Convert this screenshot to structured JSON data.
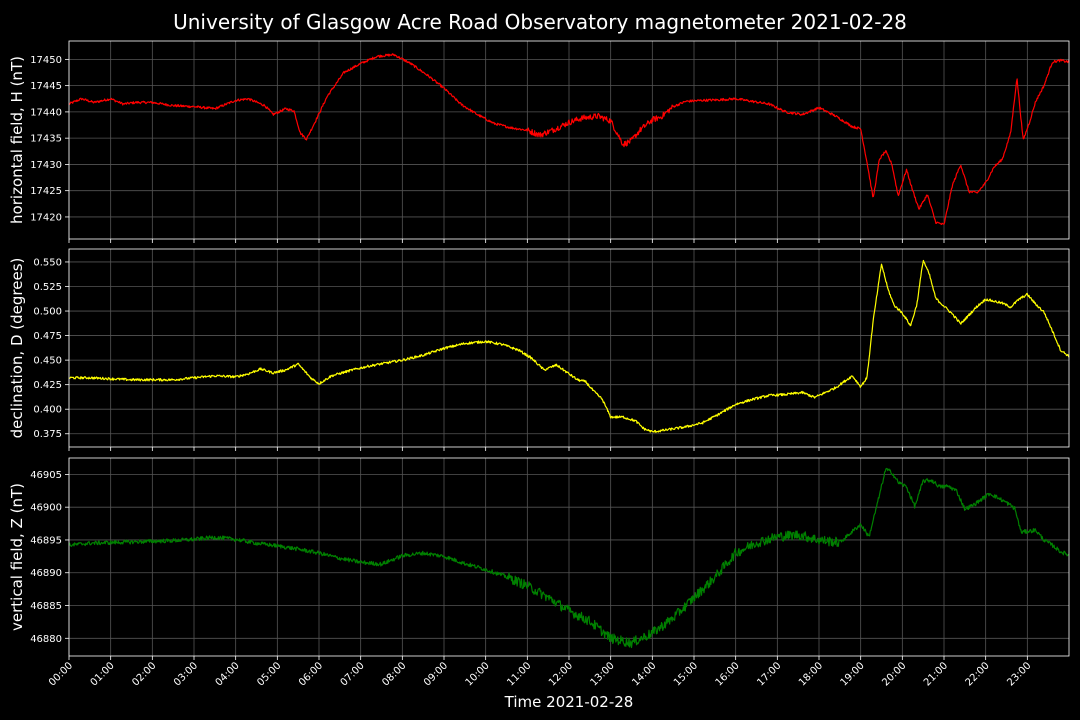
{
  "title": "University of Glasgow Acre Road Observatory magnetometer 2021-02-28",
  "xlabel": "Time 2021-02-28",
  "colors": {
    "background": "#000000",
    "axes": "#ffffff",
    "grid": "#555555"
  },
  "chart_data": [
    {
      "type": "line",
      "ylabel": "horizontal field, H (nT)",
      "color": "#ff0000",
      "xlim": [
        0,
        24
      ],
      "ylim": [
        17415.8,
        17453.5
      ],
      "yticks": [
        "17420",
        "17425",
        "17430",
        "17435",
        "17440",
        "17445",
        "17450"
      ],
      "xticks": [
        "00:00",
        "01:00",
        "02:00",
        "03:00",
        "04:00",
        "05:00",
        "06:00",
        "07:00",
        "08:00",
        "09:00",
        "10:00",
        "11:00",
        "12:00",
        "13:00",
        "14:00",
        "15:00",
        "16:00",
        "17:00",
        "18:00",
        "19:00",
        "20:00",
        "21:00",
        "22:00",
        "23:00"
      ],
      "x": [
        0,
        0.3,
        0.6,
        1,
        1.3,
        1.6,
        2,
        2.5,
        3,
        3.5,
        4,
        4.3,
        4.7,
        4.9,
        5.2,
        5.4,
        5.55,
        5.7,
        5.9,
        6.2,
        6.6,
        7,
        7.4,
        7.8,
        8.2,
        8.6,
        9,
        9.4,
        9.8,
        10.2,
        10.6,
        11,
        11.3,
        11.6,
        12,
        12.3,
        12.7,
        13,
        13.3,
        13.5,
        13.7,
        14,
        14.2,
        14.5,
        14.8,
        15.2,
        15.6,
        16,
        16.4,
        16.8,
        17.2,
        17.6,
        18,
        18.4,
        18.8,
        19,
        19.15,
        19.3,
        19.45,
        19.6,
        19.75,
        19.9,
        20.1,
        20.25,
        20.4,
        20.6,
        20.8,
        21,
        21.2,
        21.4,
        21.6,
        21.8,
        22,
        22.2,
        22.4,
        22.6,
        22.75,
        22.9,
        23.05,
        23.2,
        23.4,
        23.6,
        23.8,
        24
      ],
      "y": [
        17441.5,
        17442.5,
        17441.8,
        17442.5,
        17441.5,
        17441.8,
        17441.8,
        17441.2,
        17441,
        17440.6,
        17442.2,
        17442.5,
        17441.2,
        17439.5,
        17440.6,
        17440.2,
        17436,
        17434.8,
        17438,
        17443,
        17447.5,
        17449.2,
        17450.6,
        17450.9,
        17449.2,
        17447,
        17444.5,
        17441.5,
        17439.5,
        17437.8,
        17437,
        17436.5,
        17435.6,
        17436.5,
        17438,
        17438.8,
        17439.2,
        17438.3,
        17433.8,
        17434.5,
        17436.5,
        17438.5,
        17439,
        17441,
        17442,
        17442.2,
        17442.3,
        17442.5,
        17442,
        17441.5,
        17440,
        17439.5,
        17440.8,
        17439.2,
        17437.2,
        17436.8,
        17430.5,
        17423.5,
        17431,
        17432.5,
        17430,
        17424,
        17429,
        17425,
        17421.5,
        17424.3,
        17419,
        17418.5,
        17426,
        17430,
        17424.8,
        17424.6,
        17426.5,
        17429.5,
        17431,
        17436,
        17446.5,
        17434.6,
        17438,
        17442,
        17445,
        17449.5,
        17449.8,
        17449.5
      ]
    },
    {
      "type": "line",
      "ylabel": "declination, D (degrees)",
      "color": "#ffff00",
      "xlim": [
        0,
        24
      ],
      "ylim": [
        0.3615,
        0.5632
      ],
      "yticks": [
        "0.375",
        "0.400",
        "0.425",
        "0.450",
        "0.475",
        "0.500",
        "0.525",
        "0.550"
      ],
      "xticks": [
        "00:00",
        "01:00",
        "02:00",
        "03:00",
        "04:00",
        "05:00",
        "06:00",
        "07:00",
        "08:00",
        "09:00",
        "10:00",
        "11:00",
        "12:00",
        "13:00",
        "14:00",
        "15:00",
        "16:00",
        "17:00",
        "18:00",
        "19:00",
        "20:00",
        "21:00",
        "22:00",
        "23:00"
      ],
      "x": [
        0,
        0.5,
        1,
        1.5,
        2,
        2.5,
        3,
        3.5,
        4,
        4.3,
        4.6,
        4.9,
        5.2,
        5.5,
        5.8,
        6,
        6.3,
        6.8,
        7.2,
        7.6,
        8,
        8.5,
        9,
        9.5,
        10,
        10.4,
        10.8,
        11.1,
        11.4,
        11.7,
        12,
        12.2,
        12.4,
        12.6,
        12.8,
        13,
        13.3,
        13.6,
        13.8,
        14,
        14.2,
        14.5,
        14.8,
        15.2,
        15.6,
        16,
        16.4,
        16.8,
        17.2,
        17.6,
        17.9,
        18.2,
        18.4,
        18.6,
        18.8,
        19,
        19.15,
        19.3,
        19.5,
        19.65,
        19.8,
        20,
        20.2,
        20.35,
        20.5,
        20.65,
        20.8,
        21,
        21.2,
        21.4,
        21.6,
        21.8,
        22,
        22.2,
        22.4,
        22.6,
        22.8,
        23,
        23.2,
        23.4,
        23.6,
        23.8,
        24
      ],
      "y": [
        0.432,
        0.432,
        0.431,
        0.43,
        0.43,
        0.43,
        0.432,
        0.434,
        0.433,
        0.436,
        0.441,
        0.437,
        0.44,
        0.446,
        0.432,
        0.426,
        0.434,
        0.44,
        0.444,
        0.447,
        0.45,
        0.455,
        0.462,
        0.467,
        0.469,
        0.466,
        0.46,
        0.452,
        0.44,
        0.445,
        0.436,
        0.43,
        0.428,
        0.418,
        0.41,
        0.392,
        0.392,
        0.388,
        0.38,
        0.377,
        0.378,
        0.38,
        0.382,
        0.386,
        0.395,
        0.405,
        0.41,
        0.414,
        0.415,
        0.417,
        0.412,
        0.418,
        0.422,
        0.428,
        0.434,
        0.423,
        0.432,
        0.49,
        0.548,
        0.523,
        0.506,
        0.498,
        0.485,
        0.507,
        0.552,
        0.537,
        0.513,
        0.505,
        0.497,
        0.487,
        0.496,
        0.505,
        0.512,
        0.51,
        0.508,
        0.504,
        0.512,
        0.517,
        0.507,
        0.499,
        0.48,
        0.46,
        0.454
      ]
    },
    {
      "type": "line",
      "ylabel": "vertical field, Z (nT)",
      "color": "#008000",
      "xlim": [
        0,
        24
      ],
      "ylim": [
        46877.3,
        46907.5
      ],
      "yticks": [
        "46880",
        "46885",
        "46890",
        "46895",
        "46900",
        "46905"
      ],
      "xticks": [
        "00:00",
        "01:00",
        "02:00",
        "03:00",
        "04:00",
        "05:00",
        "06:00",
        "07:00",
        "08:00",
        "09:00",
        "10:00",
        "11:00",
        "12:00",
        "13:00",
        "14:00",
        "15:00",
        "16:00",
        "17:00",
        "18:00",
        "19:00",
        "20:00",
        "21:00",
        "22:00",
        "23:00"
      ],
      "x": [
        0,
        0.5,
        1,
        1.5,
        2,
        2.5,
        3,
        3.5,
        4,
        4.5,
        5,
        5.5,
        6,
        6.5,
        7,
        7.5,
        8,
        8.5,
        9,
        9.5,
        10,
        10.5,
        11,
        11.5,
        12,
        12.5,
        13,
        13.5,
        14,
        14.5,
        15,
        15.5,
        16,
        16.5,
        17,
        17.5,
        18,
        18.5,
        18.8,
        19,
        19.2,
        19.4,
        19.6,
        19.75,
        19.9,
        20.1,
        20.3,
        20.5,
        20.7,
        20.9,
        21.1,
        21.3,
        21.5,
        21.7,
        21.9,
        22.1,
        22.3,
        22.5,
        22.7,
        22.85,
        23,
        23.2,
        23.4,
        23.6,
        23.8,
        24
      ],
      "y": [
        46894.2,
        46894.5,
        46894.6,
        46894.7,
        46894.8,
        46894.9,
        46895.1,
        46895.4,
        46895.1,
        46894.5,
        46894.1,
        46893.6,
        46893,
        46892.2,
        46891.6,
        46891.3,
        46892.6,
        46893,
        46892.5,
        46891.4,
        46890.5,
        46889.4,
        46888,
        46886.2,
        46884.2,
        46882.6,
        46880,
        46879.3,
        46880.8,
        46883.1,
        46886.2,
        46889.3,
        46893,
        46894.6,
        46895.5,
        46895.8,
        46895,
        46894.6,
        46896.3,
        46897.4,
        46895.5,
        46900.5,
        46905.8,
        46905.3,
        46903.8,
        46903.1,
        46900.1,
        46904,
        46904.1,
        46903.1,
        46903.2,
        46902.5,
        46899.7,
        46900.3,
        46901.2,
        46902.1,
        46901.4,
        46900.7,
        46899.8,
        46896.2,
        46896.3,
        46896.5,
        46895,
        46894.2,
        46893.2,
        46892.7
      ]
    }
  ]
}
